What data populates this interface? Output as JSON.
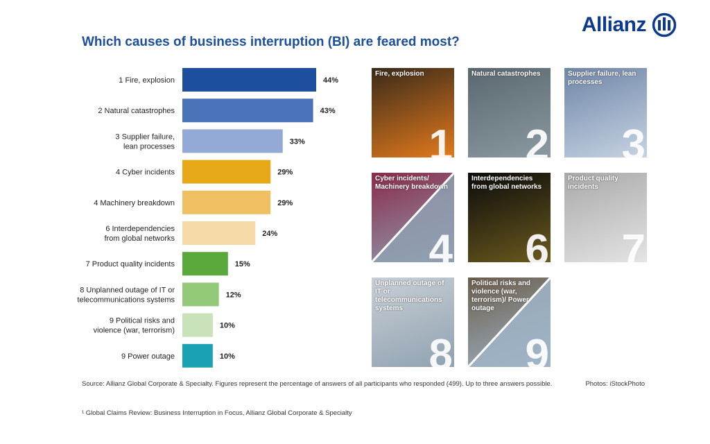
{
  "header": {
    "title": "Which causes of business interruption (BI) are feared most?",
    "brand": "Allianz"
  },
  "chart_data": {
    "type": "bar",
    "orientation": "horizontal",
    "title": "Which causes of business interruption (BI) are feared most?",
    "categories": [
      [
        "1 Fire, explosion"
      ],
      [
        "2 Natural catastrophes"
      ],
      [
        "3 Supplier failure,",
        "lean processes"
      ],
      [
        "4 Cyber incidents"
      ],
      [
        "4 Machinery breakdown"
      ],
      [
        "6 Interdependencies",
        "from global networks"
      ],
      [
        "7 Product quality incidents"
      ],
      [
        "8 Unplanned outage of IT or",
        "telecommunications systems"
      ],
      [
        "9 Political risks and",
        "violence (war, terrorism)"
      ],
      [
        "9 Power outage"
      ]
    ],
    "values": [
      44,
      43,
      33,
      29,
      29,
      24,
      15,
      12,
      10,
      10
    ],
    "value_labels": [
      "44%",
      "43%",
      "33%",
      "29%",
      "29%",
      "24%",
      "15%",
      "12%",
      "10%",
      "10%"
    ],
    "unit": "%",
    "xlim": [
      0,
      44
    ],
    "colors": [
      "#1e4f9e",
      "#4a72b8",
      "#93a9d6",
      "#e6a817",
      "#efc062",
      "#f6dba8",
      "#5ba83c",
      "#92c877",
      "#c9e2b9",
      "#1aa2b2"
    ],
    "grid": false,
    "legend": "none"
  },
  "tiles": [
    {
      "caption": "Fire, explosion",
      "number": "1",
      "bg1": "#3a2a1a",
      "bg2": "#e37a1c"
    },
    {
      "caption": "Natural catastrophes",
      "number": "2",
      "bg1": "#5a6770",
      "bg2": "#8a9aa0"
    },
    {
      "caption": "Supplier failure, lean processes",
      "number": "3",
      "bg1": "#6f86a7",
      "bg2": "#c7d3e3"
    },
    {
      "caption": "Cyber incidents/ Machinery breakdown",
      "number": "4",
      "bg1": "#8b2a4a",
      "bg2": "#8fa0b2"
    },
    {
      "caption": "Interdependencies from global networks",
      "number": "6",
      "bg1": "#0b0b0b",
      "bg2": "#6b5a1e"
    },
    {
      "caption": "Product quality incidents",
      "number": "7",
      "bg1": "#a9a9a9",
      "bg2": "#e4e4e4"
    },
    {
      "caption": "Unplanned outage of IT or telecommunications systems",
      "number": "8",
      "bg1": "#c9cfd6",
      "bg2": "#8fa2b0"
    },
    {
      "caption": "Political risks and violence (war, terrorism)/ Power outage",
      "number": "9",
      "bg1": "#6b5d4b",
      "bg2": "#9fb4c7"
    }
  ],
  "footer": {
    "source": "Source: Allianz Global Corporate & Specialty. Figures represent the percentage of answers of all participants who responded (499). Up to three answers possible.",
    "photos": "Photos: iStockPhoto",
    "footnote": "¹ Global Claims Review: Business Interruption in Focus, Allianz Global Corporate & Specialty"
  }
}
